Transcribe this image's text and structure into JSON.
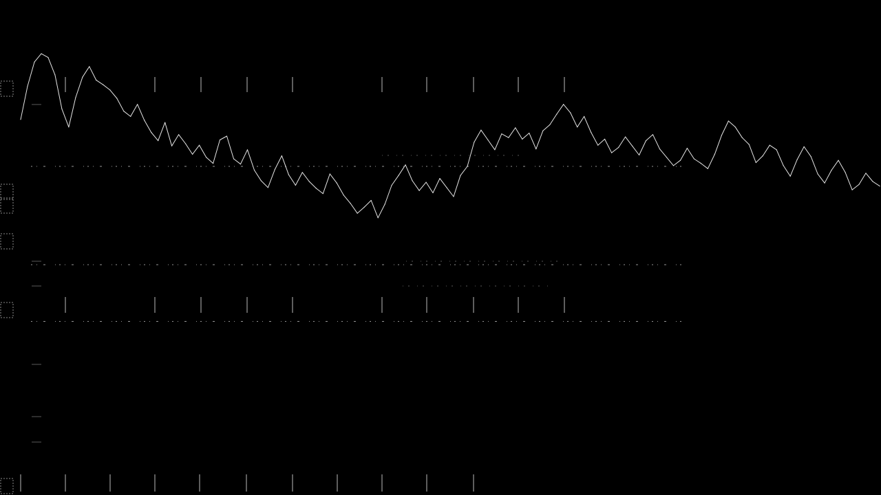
{
  "colors": {
    "background": "#000000",
    "trace": "#e6e6e6",
    "grid": "#bdbdbd",
    "faint_grid": "#5a5a5a",
    "tick_text": "#8a8a8a"
  },
  "chart_data": {
    "type": "line",
    "title": "",
    "xlabel": "",
    "ylabel": "",
    "grid": true,
    "legend": "none",
    "xlim": [
      0,
      1250
    ],
    "ylim": [
      0,
      60
    ],
    "y_gridlines": [
      38,
      25,
      17.5
    ],
    "x_tick_marks": [
      0,
      65,
      130,
      195,
      260,
      325,
      390,
      455,
      520,
      585,
      655
    ],
    "y_tick_labels": [],
    "x_tick_labels": [],
    "series": [
      {
        "x": [
          0,
          10,
          20,
          30,
          40,
          50,
          60,
          70,
          80,
          90,
          100,
          110,
          120,
          130,
          140,
          150,
          160,
          170,
          180,
          190,
          200,
          210,
          220,
          230,
          240,
          250,
          260,
          270,
          280,
          290,
          300,
          310,
          320,
          330,
          340,
          350,
          360,
          370,
          380,
          390,
          400,
          410,
          420,
          430,
          440,
          450,
          460,
          470,
          480,
          490,
          500,
          510,
          520,
          530,
          540,
          550,
          560,
          570,
          580,
          590,
          600,
          610,
          620,
          630,
          640,
          650,
          660,
          670,
          680,
          690,
          700,
          710,
          720,
          730,
          740,
          750,
          760,
          770,
          780,
          790,
          800,
          810,
          820,
          830,
          840,
          850,
          860,
          870,
          880,
          890,
          900,
          910,
          920,
          930,
          940,
          950,
          960,
          970,
          980,
          990,
          1000,
          1010,
          1020,
          1030,
          1040,
          1050,
          1060,
          1070,
          1080,
          1090,
          1100,
          1110,
          1120,
          1130,
          1140,
          1150,
          1160,
          1170,
          1180,
          1190,
          1200,
          1210,
          1220,
          1230,
          1240,
          1250
        ],
        "values": [
          44.2,
          48.6,
          51.8,
          52.9,
          52.4,
          50.1,
          45.6,
          43.2,
          47.1,
          49.8,
          51.2,
          49.4,
          48.8,
          48.1,
          47.0,
          45.3,
          44.6,
          46.2,
          44.1,
          42.5,
          41.4,
          43.8,
          40.7,
          42.2,
          41.0,
          39.6,
          40.8,
          39.2,
          38.4,
          41.5,
          42.0,
          39.0,
          38.3,
          40.2,
          37.5,
          36.1,
          35.2,
          37.6,
          39.4,
          36.9,
          35.5,
          37.2,
          36.0,
          35.1,
          34.4,
          37.0,
          35.8,
          34.2,
          33.1,
          31.8,
          32.6,
          33.5,
          31.2,
          33.0,
          35.5,
          36.8,
          38.2,
          36.1,
          34.8,
          35.9,
          34.5,
          36.4,
          35.2,
          34.0,
          36.8,
          38.0,
          41.2,
          42.8,
          41.5,
          40.2,
          42.3,
          41.8,
          43.1,
          41.6,
          42.4,
          40.3,
          42.7,
          43.5,
          44.9,
          46.2,
          45.1,
          43.2,
          44.6,
          42.5,
          40.8,
          41.6,
          39.8,
          40.5,
          41.9,
          40.7,
          39.5,
          41.4,
          42.2,
          40.3,
          39.2,
          38.1,
          38.8,
          40.4,
          39.0,
          38.4,
          37.7,
          39.6,
          42.1,
          44.0,
          43.2,
          41.8,
          40.9,
          38.5,
          39.4,
          40.8,
          40.2,
          38.1,
          36.7,
          38.9,
          40.6,
          39.3,
          37.0,
          35.8,
          37.5,
          38.8,
          37.2,
          34.9,
          35.6,
          37.1,
          36.0,
          35.4
        ]
      }
    ]
  }
}
